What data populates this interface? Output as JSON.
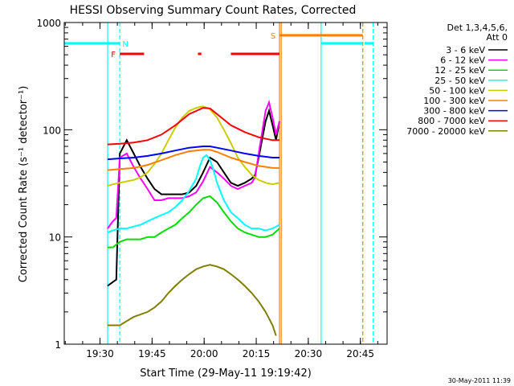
{
  "chart_data": {
    "type": "line",
    "title": "HESSI Observing Summary Count Rates, Corrected",
    "xlabel": "Start Time (29-May-11 19:19:42)",
    "ylabel": "Corrected Count Rate (s⁻¹ detector⁻¹)",
    "footer": "30-May-2011 11:39",
    "x_unit": "minutes after 19:19:42",
    "xlim": [
      0,
      93
    ],
    "ylim": [
      1,
      1000
    ],
    "y_scale": "log",
    "x_ticks": [
      {
        "x": 10.3,
        "label": "19:30"
      },
      {
        "x": 25.3,
        "label": "19:45"
      },
      {
        "x": 40.3,
        "label": "20:00"
      },
      {
        "x": 55.3,
        "label": "20:15"
      },
      {
        "x": 70.3,
        "label": "20:30"
      },
      {
        "x": 85.3,
        "label": "20:45"
      }
    ],
    "y_ticks": [
      {
        "y": 1,
        "label": "1"
      },
      {
        "y": 10,
        "label": "10"
      },
      {
        "y": 100,
        "label": "100"
      },
      {
        "y": 1000,
        "label": "1000"
      }
    ],
    "legend": {
      "placement": "right",
      "header": [
        "Det 1,3,4,5,6,",
        "Att 0"
      ]
    },
    "series": [
      {
        "name": "3 - 6 keV",
        "color": "#000000",
        "x": [
          12.5,
          14,
          15,
          16,
          18,
          20,
          22,
          24,
          26,
          28,
          30,
          32,
          34,
          36,
          38,
          40,
          42,
          44,
          46,
          48,
          50,
          52,
          54,
          55,
          56,
          58,
          59,
          60,
          61,
          62
        ],
        "y": [
          3.5,
          3.8,
          4,
          60,
          80,
          60,
          45,
          35,
          28,
          25,
          25,
          25,
          25,
          26,
          30,
          40,
          55,
          50,
          40,
          32,
          30,
          32,
          35,
          38,
          55,
          120,
          150,
          110,
          80,
          120
        ]
      },
      {
        "name": "6 - 12 keV",
        "color": "#ff00ff",
        "x": [
          12.5,
          14,
          15,
          16,
          18,
          20,
          22,
          24,
          26,
          28,
          30,
          32,
          34,
          36,
          38,
          40,
          42,
          44,
          46,
          48,
          50,
          52,
          54,
          55,
          56,
          58,
          59,
          60,
          61,
          62
        ],
        "y": [
          12,
          14,
          15,
          55,
          60,
          45,
          35,
          28,
          22,
          22,
          23,
          23,
          23,
          24,
          26,
          33,
          45,
          40,
          35,
          30,
          28,
          30,
          32,
          36,
          60,
          150,
          180,
          130,
          90,
          120
        ]
      },
      {
        "name": "12 - 25 keV",
        "color": "#00dd00",
        "x": [
          12.5,
          14,
          15,
          16,
          18,
          20,
          22,
          24,
          26,
          28,
          30,
          32,
          34,
          36,
          38,
          40,
          42,
          44,
          46,
          48,
          50,
          52,
          54,
          56,
          58,
          60,
          62
        ],
        "y": [
          8,
          8,
          8.5,
          9,
          9.5,
          9.5,
          9.5,
          10,
          10,
          11,
          12,
          13,
          15,
          17,
          20,
          23,
          24,
          21,
          17,
          14,
          12,
          11,
          10.5,
          10,
          10,
          10.5,
          12
        ]
      },
      {
        "name": "25 - 50 keV",
        "color": "#00ffff",
        "x": [
          12.5,
          14,
          16,
          18,
          20,
          22,
          24,
          26,
          28,
          30,
          32,
          34,
          36,
          38,
          39,
          40,
          41,
          42,
          43,
          44,
          46,
          48,
          50,
          52,
          54,
          56,
          58,
          60,
          62
        ],
        "y": [
          11,
          11.5,
          12,
          12,
          12.5,
          13,
          14,
          15,
          16,
          17,
          19,
          22,
          27,
          35,
          45,
          55,
          58,
          52,
          42,
          32,
          22,
          17,
          15,
          13,
          12,
          12,
          11.5,
          12,
          13
        ]
      },
      {
        "name": "50 - 100 keV",
        "color": "#cccc00",
        "x": [
          12.5,
          14,
          16,
          18,
          20,
          22,
          24,
          26,
          28,
          30,
          32,
          34,
          36,
          38,
          40,
          42,
          44,
          46,
          48,
          50,
          52,
          54,
          56,
          58,
          60,
          62
        ],
        "y": [
          30,
          31,
          32,
          33,
          34,
          36,
          40,
          48,
          60,
          80,
          105,
          130,
          150,
          160,
          165,
          155,
          130,
          100,
          75,
          55,
          45,
          38,
          34,
          32,
          31,
          32
        ]
      },
      {
        "name": "100 - 300 keV",
        "color": "#ff8000",
        "x": [
          12.5,
          16,
          20,
          24,
          28,
          32,
          36,
          40,
          42,
          44,
          48,
          52,
          56,
          60,
          62
        ],
        "y": [
          42,
          43,
          44,
          47,
          52,
          58,
          63,
          65,
          65,
          62,
          55,
          50,
          46,
          44,
          44
        ]
      },
      {
        "name": "300 - 800 keV",
        "color": "#0000ff",
        "x": [
          12.5,
          16,
          20,
          24,
          28,
          32,
          36,
          40,
          42,
          44,
          48,
          52,
          56,
          60,
          62
        ],
        "y": [
          53,
          54,
          55,
          57,
          60,
          64,
          68,
          70,
          70,
          68,
          64,
          60,
          57,
          55,
          55
        ]
      },
      {
        "name": "800 - 7000 keV",
        "color": "#ff0000",
        "x": [
          12.5,
          16,
          20,
          24,
          28,
          32,
          36,
          40,
          42,
          44,
          48,
          52,
          56,
          60,
          62
        ],
        "y": [
          73,
          74,
          76,
          80,
          90,
          110,
          140,
          160,
          158,
          140,
          110,
          95,
          85,
          80,
          80
        ]
      },
      {
        "name": "7000 - 20000 keV",
        "color": "#808000",
        "x": [
          12.5,
          16,
          20,
          24,
          26,
          28,
          30,
          32,
          34,
          36,
          38,
          40,
          42,
          44,
          46,
          48,
          50,
          52,
          54,
          56,
          58,
          60,
          61
        ],
        "y": [
          1.5,
          1.5,
          1.8,
          2,
          2.2,
          2.5,
          3,
          3.5,
          4,
          4.5,
          5,
          5.3,
          5.5,
          5.3,
          5,
          4.5,
          4,
          3.5,
          3,
          2.5,
          2,
          1.5,
          1.2
        ]
      }
    ],
    "bars": [
      {
        "label": "F",
        "color": "#ff0000",
        "level": 510,
        "segments": [
          [
            16,
            23
          ],
          [
            38.5,
            39.5
          ],
          [
            48,
            62
          ]
        ]
      },
      {
        "label": "N",
        "color": "#00ffff",
        "level": 640,
        "segments": [
          [
            0,
            16
          ],
          [
            74,
            86
          ],
          [
            86.5,
            89
          ]
        ]
      },
      {
        "label": "S",
        "color": "#ff8000",
        "level": 760,
        "segments": [
          [
            62,
            86
          ]
        ]
      }
    ],
    "vertical_lines": [
      {
        "x": 12.5,
        "color": "#00ffff",
        "style": "solid"
      },
      {
        "x": 16,
        "color": "#00ffff",
        "style": "dashed"
      },
      {
        "x": 62,
        "color": "#ff8000",
        "style": "solid"
      },
      {
        "x": 62.5,
        "color": "#ff8000",
        "style": "solid"
      },
      {
        "x": 74,
        "color": "#00ffff",
        "style": "solid"
      },
      {
        "x": 86,
        "color": "#ff8000",
        "style": "dashed"
      },
      {
        "x": 89,
        "color": "#00ffff",
        "style": "dashed"
      }
    ]
  }
}
